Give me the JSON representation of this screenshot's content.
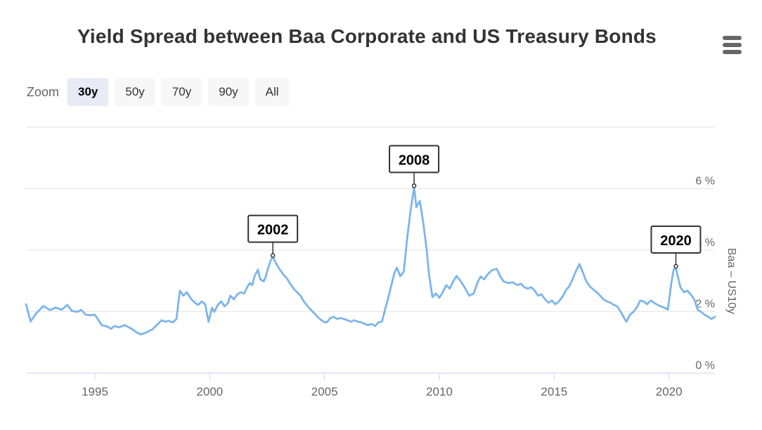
{
  "title": "Yield Spread between Baa Corporate and US Treasury Bonds",
  "menu": {
    "icon": "hamburger-icon"
  },
  "zoom_controls": {
    "label": "Zoom",
    "buttons": [
      {
        "label": "30y",
        "selected": true
      },
      {
        "label": "50y",
        "selected": false
      },
      {
        "label": "70y",
        "selected": false
      },
      {
        "label": "90y",
        "selected": false
      },
      {
        "label": "All",
        "selected": false
      }
    ]
  },
  "colors": {
    "series_line": "#7cb5ec",
    "gridline": "#e6e6e6",
    "axis_line": "#ccd6eb",
    "tick_label": "#666666",
    "title_text": "#333333",
    "annotation_border": "#333333",
    "annotation_bg": "#ffffff",
    "button_bg": "#f7f7f7",
    "button_selected_bg": "#e6ebf5"
  },
  "chart_data": {
    "type": "line",
    "title": "Yield Spread between Baa Corporate and US Treasury Bonds",
    "xlim": [
      1992,
      2022
    ],
    "ylim": [
      0,
      8
    ],
    "grid": true,
    "legend": false,
    "x_axis": {
      "labels": [
        {
          "value": 1995,
          "text": "1995"
        },
        {
          "value": 2000,
          "text": "2000"
        },
        {
          "value": 2005,
          "text": "2005"
        },
        {
          "value": 2010,
          "text": "2010"
        },
        {
          "value": 2015,
          "text": "2015"
        },
        {
          "value": 2020,
          "text": "2020"
        }
      ]
    },
    "y_axis": {
      "side": "right",
      "title": "Baa – US10y",
      "gridline_values": [
        2,
        4,
        6,
        8
      ],
      "labels": [
        {
          "value": 0,
          "text": "0 %"
        },
        {
          "value": 2,
          "text": "2 %"
        },
        {
          "value": 4,
          "text": "4 %"
        },
        {
          "value": 6,
          "text": "6 %"
        }
      ]
    },
    "annotations": [
      {
        "label": "2002",
        "x": 2002.75,
        "y": 3.78
      },
      {
        "label": "2008",
        "x": 2008.9,
        "y": 6.05
      },
      {
        "label": "2020",
        "x": 2020.3,
        "y": 3.43
      }
    ],
    "series": [
      {
        "name": "Baa – US10y",
        "color": "#7cb5ec",
        "points": [
          [
            1992.0,
            2.24
          ],
          [
            1992.2,
            1.68
          ],
          [
            1992.45,
            1.95
          ],
          [
            1992.75,
            2.18
          ],
          [
            1993.05,
            2.05
          ],
          [
            1993.3,
            2.13
          ],
          [
            1993.55,
            2.06
          ],
          [
            1993.8,
            2.22
          ],
          [
            1994.0,
            2.02
          ],
          [
            1994.25,
            1.99
          ],
          [
            1994.4,
            2.06
          ],
          [
            1994.6,
            1.9
          ],
          [
            1994.8,
            1.88
          ],
          [
            1995.0,
            1.9
          ],
          [
            1995.3,
            1.56
          ],
          [
            1995.55,
            1.51
          ],
          [
            1995.7,
            1.44
          ],
          [
            1995.85,
            1.53
          ],
          [
            1996.05,
            1.49
          ],
          [
            1996.3,
            1.56
          ],
          [
            1996.6,
            1.44
          ],
          [
            1996.8,
            1.33
          ],
          [
            1997.0,
            1.26
          ],
          [
            1997.2,
            1.31
          ],
          [
            1997.5,
            1.42
          ],
          [
            1997.75,
            1.6
          ],
          [
            1997.9,
            1.72
          ],
          [
            1998.05,
            1.67
          ],
          [
            1998.2,
            1.7
          ],
          [
            1998.4,
            1.65
          ],
          [
            1998.55,
            1.76
          ],
          [
            1998.7,
            2.68
          ],
          [
            1998.85,
            2.52
          ],
          [
            1999.0,
            2.63
          ],
          [
            1999.2,
            2.4
          ],
          [
            1999.35,
            2.29
          ],
          [
            1999.5,
            2.22
          ],
          [
            1999.65,
            2.33
          ],
          [
            1999.8,
            2.24
          ],
          [
            1999.95,
            1.67
          ],
          [
            2000.1,
            2.13
          ],
          [
            2000.2,
            1.99
          ],
          [
            2000.35,
            2.22
          ],
          [
            2000.5,
            2.33
          ],
          [
            2000.65,
            2.17
          ],
          [
            2000.8,
            2.29
          ],
          [
            2000.9,
            2.52
          ],
          [
            2001.05,
            2.4
          ],
          [
            2001.2,
            2.56
          ],
          [
            2001.35,
            2.63
          ],
          [
            2001.5,
            2.59
          ],
          [
            2001.65,
            2.82
          ],
          [
            2001.75,
            2.93
          ],
          [
            2001.85,
            2.86
          ],
          [
            2001.95,
            3.14
          ],
          [
            2002.1,
            3.37
          ],
          [
            2002.2,
            3.05
          ],
          [
            2002.35,
            2.98
          ],
          [
            2002.45,
            3.16
          ],
          [
            2002.55,
            3.43
          ],
          [
            2002.65,
            3.66
          ],
          [
            2002.75,
            3.78
          ],
          [
            2002.9,
            3.55
          ],
          [
            2003.05,
            3.37
          ],
          [
            2003.2,
            3.21
          ],
          [
            2003.35,
            3.09
          ],
          [
            2003.5,
            2.91
          ],
          [
            2003.65,
            2.75
          ],
          [
            2003.8,
            2.63
          ],
          [
            2003.95,
            2.52
          ],
          [
            2004.1,
            2.33
          ],
          [
            2004.35,
            2.1
          ],
          [
            2004.55,
            1.95
          ],
          [
            2004.75,
            1.79
          ],
          [
            2004.95,
            1.67
          ],
          [
            2005.1,
            1.65
          ],
          [
            2005.25,
            1.79
          ],
          [
            2005.4,
            1.83
          ],
          [
            2005.55,
            1.76
          ],
          [
            2005.7,
            1.79
          ],
          [
            2005.85,
            1.76
          ],
          [
            2006.0,
            1.72
          ],
          [
            2006.15,
            1.67
          ],
          [
            2006.3,
            1.72
          ],
          [
            2006.45,
            1.67
          ],
          [
            2006.6,
            1.65
          ],
          [
            2006.75,
            1.6
          ],
          [
            2006.9,
            1.56
          ],
          [
            2007.05,
            1.6
          ],
          [
            2007.2,
            1.53
          ],
          [
            2007.35,
            1.65
          ],
          [
            2007.5,
            1.67
          ],
          [
            2007.65,
            2.1
          ],
          [
            2007.8,
            2.52
          ],
          [
            2007.95,
            2.98
          ],
          [
            2008.05,
            3.27
          ],
          [
            2008.15,
            3.43
          ],
          [
            2008.3,
            3.15
          ],
          [
            2008.45,
            3.3
          ],
          [
            2008.6,
            4.4
          ],
          [
            2008.75,
            5.3
          ],
          [
            2008.9,
            6.05
          ],
          [
            2009.0,
            5.4
          ],
          [
            2009.15,
            5.6
          ],
          [
            2009.3,
            4.9
          ],
          [
            2009.45,
            4.0
          ],
          [
            2009.55,
            3.2
          ],
          [
            2009.7,
            2.47
          ],
          [
            2009.85,
            2.59
          ],
          [
            2010.0,
            2.45
          ],
          [
            2010.15,
            2.63
          ],
          [
            2010.3,
            2.86
          ],
          [
            2010.45,
            2.75
          ],
          [
            2010.6,
            2.98
          ],
          [
            2010.75,
            3.16
          ],
          [
            2010.9,
            3.02
          ],
          [
            2011.1,
            2.79
          ],
          [
            2011.3,
            2.52
          ],
          [
            2011.5,
            2.59
          ],
          [
            2011.65,
            2.93
          ],
          [
            2011.8,
            3.14
          ],
          [
            2011.95,
            3.05
          ],
          [
            2012.1,
            3.21
          ],
          [
            2012.3,
            3.35
          ],
          [
            2012.5,
            3.39
          ],
          [
            2012.65,
            3.15
          ],
          [
            2012.8,
            2.98
          ],
          [
            2013.0,
            2.93
          ],
          [
            2013.2,
            2.95
          ],
          [
            2013.4,
            2.86
          ],
          [
            2013.55,
            2.91
          ],
          [
            2013.7,
            2.79
          ],
          [
            2013.85,
            2.75
          ],
          [
            2014.0,
            2.79
          ],
          [
            2014.15,
            2.68
          ],
          [
            2014.3,
            2.52
          ],
          [
            2014.45,
            2.56
          ],
          [
            2014.6,
            2.4
          ],
          [
            2014.75,
            2.29
          ],
          [
            2014.9,
            2.36
          ],
          [
            2015.05,
            2.24
          ],
          [
            2015.2,
            2.33
          ],
          [
            2015.35,
            2.47
          ],
          [
            2015.5,
            2.68
          ],
          [
            2015.65,
            2.82
          ],
          [
            2015.8,
            3.05
          ],
          [
            2015.95,
            3.32
          ],
          [
            2016.1,
            3.55
          ],
          [
            2016.25,
            3.27
          ],
          [
            2016.4,
            2.98
          ],
          [
            2016.55,
            2.82
          ],
          [
            2016.7,
            2.72
          ],
          [
            2016.85,
            2.63
          ],
          [
            2017.0,
            2.52
          ],
          [
            2017.15,
            2.4
          ],
          [
            2017.3,
            2.33
          ],
          [
            2017.45,
            2.29
          ],
          [
            2017.6,
            2.22
          ],
          [
            2017.75,
            2.17
          ],
          [
            2017.9,
            1.99
          ],
          [
            2018.05,
            1.79
          ],
          [
            2018.15,
            1.67
          ],
          [
            2018.3,
            1.9
          ],
          [
            2018.45,
            1.99
          ],
          [
            2018.6,
            2.13
          ],
          [
            2018.75,
            2.36
          ],
          [
            2018.9,
            2.33
          ],
          [
            2019.05,
            2.24
          ],
          [
            2019.2,
            2.36
          ],
          [
            2019.35,
            2.29
          ],
          [
            2019.5,
            2.22
          ],
          [
            2019.65,
            2.17
          ],
          [
            2019.8,
            2.13
          ],
          [
            2019.95,
            2.06
          ],
          [
            2020.1,
            2.91
          ],
          [
            2020.2,
            3.35
          ],
          [
            2020.3,
            3.43
          ],
          [
            2020.4,
            3.1
          ],
          [
            2020.5,
            2.79
          ],
          [
            2020.65,
            2.63
          ],
          [
            2020.8,
            2.68
          ],
          [
            2020.95,
            2.56
          ],
          [
            2021.1,
            2.4
          ],
          [
            2021.25,
            2.06
          ],
          [
            2021.4,
            1.99
          ],
          [
            2021.55,
            1.9
          ],
          [
            2021.7,
            1.83
          ],
          [
            2021.85,
            1.76
          ],
          [
            2022.0,
            1.83
          ]
        ]
      }
    ]
  }
}
